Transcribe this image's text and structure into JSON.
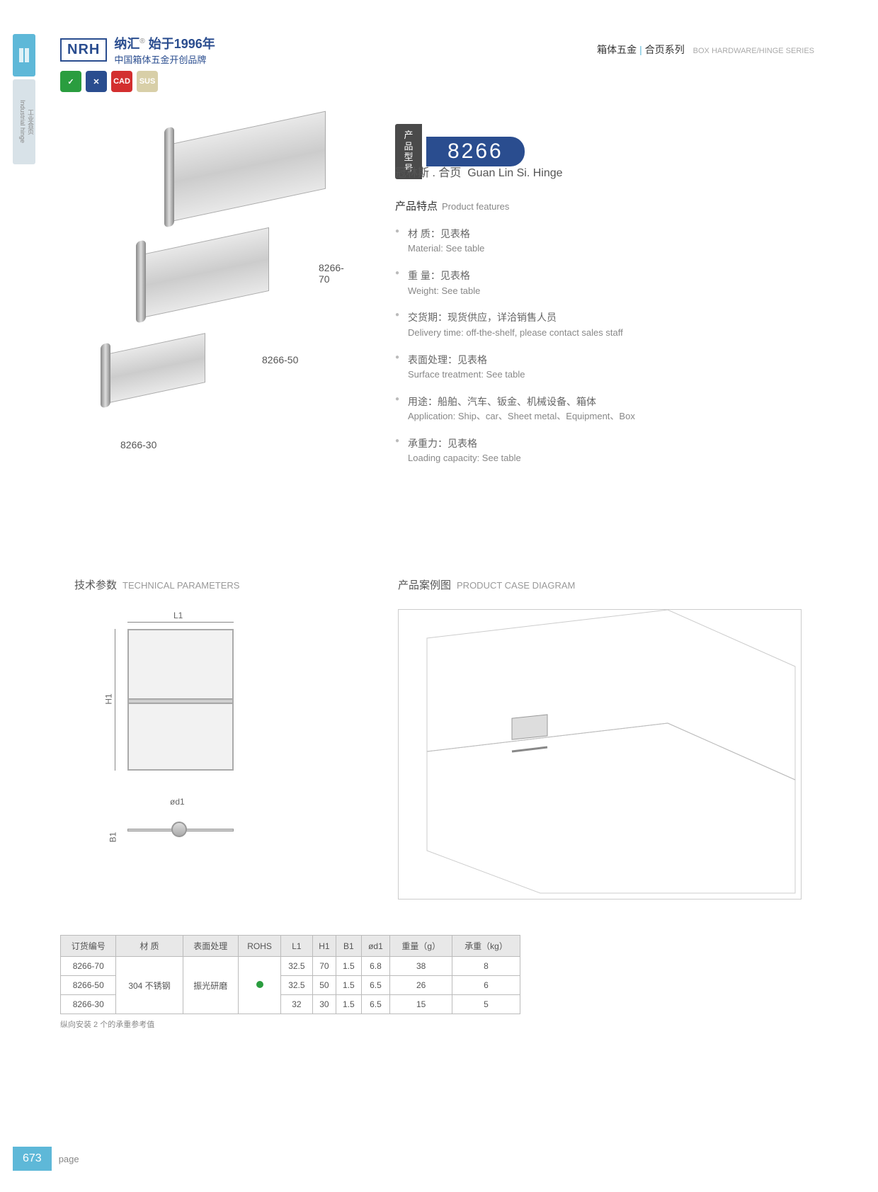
{
  "sidebar": {
    "tab2_cn": "工业合页",
    "tab2_en": "Industrial hinge"
  },
  "header": {
    "logo": "NRH",
    "cn": "纳汇",
    "since": "始于1996年",
    "sub": "中国箱体五金开创品牌",
    "right_cn": "箱体五金",
    "right_cn2": "合页系列",
    "right_en": "BOX HARDWARE/HINGE SERIES"
  },
  "badges": [
    {
      "bg": "#2a9d3f",
      "txt": "✓"
    },
    {
      "bg": "#2a4d8f",
      "txt": "✕"
    },
    {
      "bg": "#d32f2f",
      "txt": "CAD"
    },
    {
      "bg": "#d8cfa8",
      "txt": "SUS"
    }
  ],
  "product_images": {
    "labels": [
      "8266-70",
      "8266-50",
      "8266-30"
    ]
  },
  "product": {
    "num_label": "产品型号",
    "num": "8266",
    "name_cn": "冠林斯 . 合页",
    "name_en": "Guan Lin Si. Hinge"
  },
  "features": {
    "title_cn": "产品特点",
    "title_en": "Product features",
    "items": [
      {
        "cn": "材 质：见表格",
        "en": "Material: See table"
      },
      {
        "cn": "重 量：见表格",
        "en": "Weight: See table"
      },
      {
        "cn": "交货期：现货供应，详洽销售人员",
        "en": "Delivery time: off-the-shelf, please contact sales staff"
      },
      {
        "cn": "表面处理：见表格",
        "en": "Surface treatment:  See table"
      },
      {
        "cn": "用途：船舶、汽车、钣金、机械设备、箱体",
        "en": "Application: Ship、car、Sheet metal、Equipment、Box"
      },
      {
        "cn": "承重力：见表格",
        "en": "Loading capacity: See table"
      }
    ]
  },
  "tech": {
    "title_cn": "技术参数",
    "title_en": "TECHNICAL PARAMETERS",
    "dims": {
      "L1": "L1",
      "H1": "H1",
      "B1": "B1",
      "od1": "ød1"
    }
  },
  "case": {
    "title_cn": "产品案例图",
    "title_en": "PRODUCT CASE DIAGRAM"
  },
  "table": {
    "headers": [
      "订货编号",
      "材 质",
      "表面处理",
      "ROHS",
      "L1",
      "H1",
      "B1",
      "ød1",
      "重量（g）",
      "承重（kg）"
    ],
    "material": "304 不锈钢",
    "surface": "振光研磨",
    "rows": [
      {
        "code": "8266-70",
        "L1": "32.5",
        "H1": "70",
        "B1": "1.5",
        "od1": "6.8",
        "wt": "38",
        "load": "8"
      },
      {
        "code": "8266-50",
        "L1": "32.5",
        "H1": "50",
        "B1": "1.5",
        "od1": "6.5",
        "wt": "26",
        "load": "6"
      },
      {
        "code": "8266-30",
        "L1": "32",
        "H1": "30",
        "B1": "1.5",
        "od1": "6.5",
        "wt": "15",
        "load": "5"
      }
    ],
    "note": "纵向安装 2 个的承重参考值"
  },
  "page": {
    "num": "673",
    "label": "page"
  }
}
